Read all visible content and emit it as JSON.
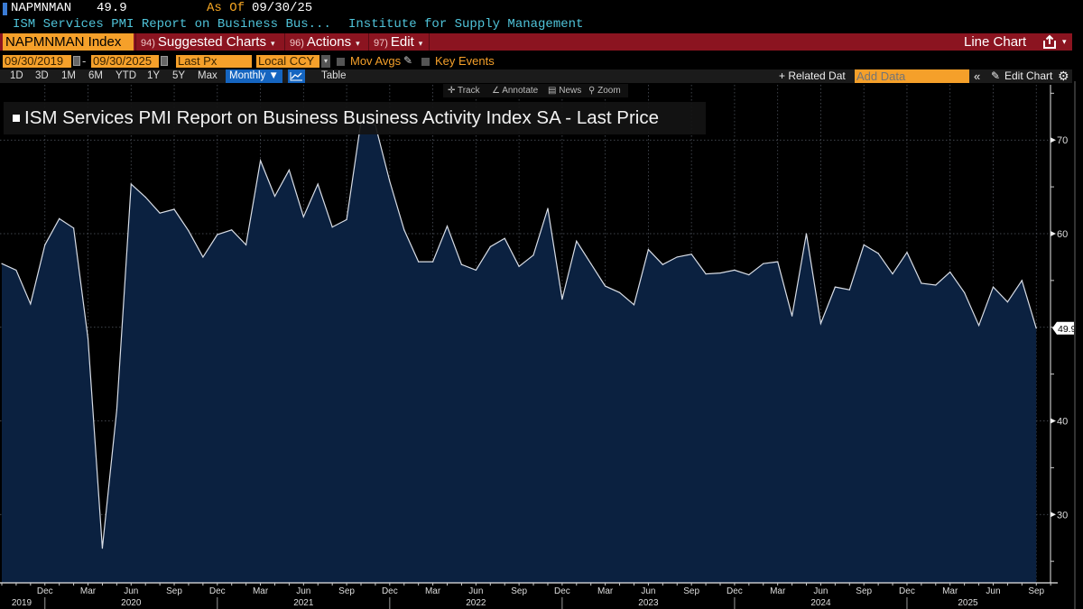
{
  "header": {
    "ticker": "NAPMNMAN",
    "last_value": "49.9",
    "as_of_label": "As Of",
    "as_of_date": "09/30/25",
    "description": "ISM Services PMI Report on Business Bus...",
    "source": "Institute for Supply Management"
  },
  "menubar": {
    "security": "NAPMNMAN Index",
    "items": [
      {
        "num": "94)",
        "label": "Suggested Charts"
      },
      {
        "num": "96)",
        "label": "Actions"
      },
      {
        "num": "97)",
        "label": "Edit"
      }
    ],
    "chart_type": "Line Chart"
  },
  "controls": {
    "start_date": "09/30/2019",
    "end_date": "09/30/2025",
    "separator": "-",
    "field": "Last Px",
    "currency": "Local CCY",
    "mov_avgs": "Mov Avgs",
    "key_events": "Key Events"
  },
  "periods": [
    "1D",
    "3D",
    "1M",
    "6M",
    "YTD",
    "1Y",
    "5Y",
    "Max"
  ],
  "frequency": "Monthly ▼",
  "table_label": "Table",
  "right_toolbar": {
    "related_data": "+ Related Dat",
    "add_data_placeholder": "Add Data",
    "collapse": "«",
    "edit_chart": "Edit Chart"
  },
  "chart_tools": [
    "Track",
    "Annotate",
    "News",
    "Zoom"
  ],
  "colors": {
    "accent_orange": "#f5a02a",
    "menu_red": "#8b1420",
    "area_fill": "#0b2140",
    "line": "#d8dde6",
    "active_blue": "#1565c0"
  },
  "chart_data": {
    "type": "area",
    "title": "ISM Services PMI Report on Business Business Activity Index SA - Last Price",
    "xlabel": "",
    "ylabel": "",
    "ylim": [
      22.7,
      75.9
    ],
    "yticks": [
      30,
      40,
      50,
      60,
      70
    ],
    "ytick_labels": [
      "30",
      "40",
      "",
      "60",
      "70"
    ],
    "last_value_label": "49.9",
    "grid": true,
    "legend": "top-left",
    "x_month_labels": [
      "Dec",
      "Mar",
      "Jun",
      "Sep",
      "Dec",
      "Mar",
      "Jun",
      "Sep",
      "Dec",
      "Mar",
      "Jun",
      "Sep",
      "Dec",
      "Mar",
      "Jun",
      "Sep",
      "Dec",
      "Mar",
      "Jun",
      "Sep",
      "Dec",
      "Mar",
      "Jun",
      "Sep"
    ],
    "x_month_label_dates": [
      "2019-12",
      "2020-03",
      "2020-06",
      "2020-09",
      "2020-12",
      "2021-03",
      "2021-06",
      "2021-09",
      "2021-12",
      "2022-03",
      "2022-06",
      "2022-09",
      "2022-12",
      "2023-03",
      "2023-06",
      "2023-09",
      "2023-12",
      "2024-03",
      "2024-06",
      "2024-09",
      "2024-12",
      "2025-03",
      "2025-06",
      "2025-09"
    ],
    "x_year_labels": [
      "2019",
      "2020",
      "2021",
      "2022",
      "2023",
      "2024",
      "2025"
    ],
    "start": "2019-09",
    "series": [
      {
        "name": "ISM Services Business Activity Index SA",
        "x": [
          "2019-09",
          "2019-10",
          "2019-11",
          "2019-12",
          "2020-01",
          "2020-02",
          "2020-03",
          "2020-04",
          "2020-05",
          "2020-06",
          "2020-07",
          "2020-08",
          "2020-09",
          "2020-10",
          "2020-11",
          "2020-12",
          "2021-01",
          "2021-02",
          "2021-03",
          "2021-04",
          "2021-05",
          "2021-06",
          "2021-07",
          "2021-08",
          "2021-09",
          "2021-10",
          "2021-11",
          "2021-12",
          "2022-01",
          "2022-02",
          "2022-03",
          "2022-04",
          "2022-05",
          "2022-06",
          "2022-07",
          "2022-08",
          "2022-09",
          "2022-10",
          "2022-11",
          "2022-12",
          "2023-01",
          "2023-02",
          "2023-03",
          "2023-04",
          "2023-05",
          "2023-06",
          "2023-07",
          "2023-08",
          "2023-09",
          "2023-10",
          "2023-11",
          "2023-12",
          "2024-01",
          "2024-02",
          "2024-03",
          "2024-04",
          "2024-05",
          "2024-06",
          "2024-07",
          "2024-08",
          "2024-09",
          "2024-10",
          "2024-11",
          "2024-12",
          "2025-01",
          "2025-02",
          "2025-03",
          "2025-04",
          "2025-05",
          "2025-06",
          "2025-07",
          "2025-08",
          "2025-09"
        ],
        "values": [
          56.8,
          56.1,
          52.5,
          58.8,
          61.6,
          60.6,
          48.8,
          26.4,
          41.2,
          65.3,
          63.9,
          62.2,
          62.6,
          60.3,
          57.5,
          59.9,
          60.4,
          58.8,
          67.8,
          64.0,
          66.8,
          61.8,
          65.3,
          60.7,
          61.5,
          72.0,
          71.6,
          65.6,
          60.4,
          57.0,
          57.0,
          60.8,
          56.7,
          56.1,
          58.6,
          59.5,
          56.5,
          57.7,
          62.7,
          53.0,
          59.2,
          56.8,
          54.4,
          53.7,
          52.4,
          58.3,
          56.7,
          57.5,
          57.8,
          55.7,
          55.8,
          56.1,
          55.6,
          56.8,
          57.0,
          51.2,
          60.0,
          50.4,
          54.3,
          54.0,
          58.8,
          57.9,
          55.7,
          58.0,
          54.7,
          54.5,
          55.9,
          53.7,
          50.2,
          54.3,
          52.7,
          55.0,
          49.9
        ]
      }
    ]
  }
}
